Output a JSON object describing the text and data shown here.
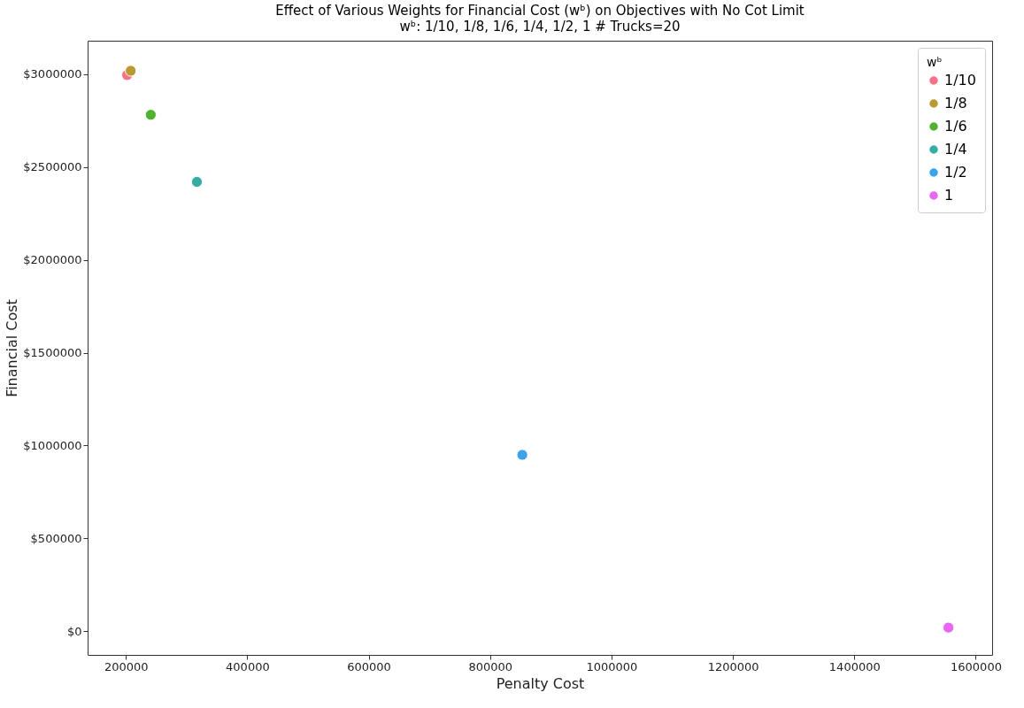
{
  "chart_data": {
    "type": "scatter",
    "title": "Effect of Various Weights for Financial Cost (wᵇ) on Objectives with No Cot Limit",
    "subtitle": "wᵇ: 1/10, 1/8, 1/6, 1/4, 1/2, 1     # Trucks=20",
    "xlabel": "Penalty Cost",
    "ylabel": "Financial Cost",
    "legend_title": "wᵇ",
    "legend": "top right",
    "grid": false,
    "marker": "circle",
    "xlim": [
      137000,
      1627000
    ],
    "xticks": [
      200000,
      400000,
      600000,
      800000,
      1000000,
      1200000,
      1400000,
      1600000
    ],
    "ylim": [
      -127000,
      3180000
    ],
    "yticks": [
      {
        "value": 0,
        "label": "$0"
      },
      {
        "value": 500000,
        "label": "$500000"
      },
      {
        "value": 1000000,
        "label": "$1000000"
      },
      {
        "value": 1500000,
        "label": "$1500000"
      },
      {
        "value": 2000000,
        "label": "$2000000"
      },
      {
        "value": 2500000,
        "label": "$2500000"
      },
      {
        "value": 3000000,
        "label": "$3000000"
      }
    ],
    "series": [
      {
        "name": "1/10",
        "color": "#f77189",
        "x": [
          202000
        ],
        "values": [
          2995000
        ]
      },
      {
        "name": "1/8",
        "color": "#bb9832",
        "x": [
          208000
        ],
        "values": [
          3018000
        ]
      },
      {
        "name": "1/6",
        "color": "#50b131",
        "x": [
          241000
        ],
        "values": [
          2781000
        ]
      },
      {
        "name": "1/4",
        "color": "#36ada4",
        "x": [
          317000
        ],
        "values": [
          2420000
        ]
      },
      {
        "name": "1/2",
        "color": "#3ba3ec",
        "x": [
          853000
        ],
        "values": [
          950000
        ]
      },
      {
        "name": "1",
        "color": "#e866f4",
        "x": [
          1555000
        ],
        "values": [
          20000
        ]
      }
    ]
  }
}
